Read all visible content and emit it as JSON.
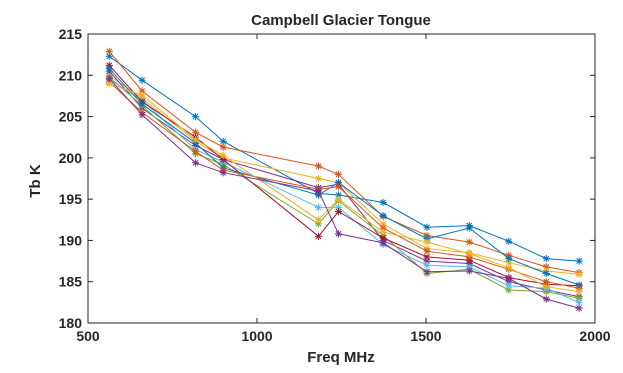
{
  "chart_data": {
    "type": "line",
    "title": "Campbell Glacier Tongue",
    "xlabel": "Freq MHz",
    "ylabel": "Tb K",
    "xlim": [
      500,
      2000
    ],
    "ylim": [
      180,
      215
    ],
    "xticks": [
      500,
      1000,
      1500,
      2000
    ],
    "yticks": [
      180,
      185,
      190,
      195,
      200,
      205,
      210,
      215
    ],
    "grid": false,
    "legend": "none",
    "marker": "asterisk",
    "x": [
      563,
      660,
      818,
      900,
      1182,
      1241,
      1373,
      1503,
      1628,
      1745,
      1856,
      1953
    ],
    "series": [
      {
        "color": "#0072BD",
        "values": [
          212.3,
          209.4,
          205.0,
          202.0,
          195.7,
          195.5,
          194.6,
          191.6,
          191.8,
          189.9,
          187.8,
          187.5
        ]
      },
      {
        "color": "#D95319",
        "values": [
          212.9,
          208.1,
          203.1,
          201.3,
          199.0,
          198.0,
          192.9,
          190.6,
          189.8,
          188.2,
          186.8,
          186.1
        ]
      },
      {
        "color": "#EDB120",
        "values": [
          210.0,
          207.2,
          202.0,
          200.0,
          197.5,
          197.0,
          192.0,
          189.0,
          188.5,
          187.3,
          186.3,
          185.9
        ]
      },
      {
        "color": "#7E2F8E",
        "values": [
          210.5,
          206.0,
          201.5,
          199.8,
          196.4,
          196.8,
          190.0,
          187.5,
          187.2,
          185.0,
          184.0,
          183.2
        ]
      },
      {
        "color": "#77AC30",
        "values": [
          209.8,
          206.3,
          200.5,
          199.2,
          192.0,
          194.8,
          190.6,
          186.0,
          186.5,
          184.0,
          183.8,
          183.0
        ]
      },
      {
        "color": "#4DBEEE",
        "values": [
          209.5,
          207.0,
          201.0,
          199.5,
          194.0,
          194.0,
          189.5,
          187.0,
          186.8,
          184.5,
          184.2,
          182.5
        ]
      },
      {
        "color": "#A2142F",
        "values": [
          211.2,
          206.8,
          202.5,
          199.8,
          190.5,
          193.5,
          190.3,
          188.0,
          187.6,
          185.5,
          184.7,
          184.5
        ]
      },
      {
        "color": "#0072BD",
        "values": [
          210.8,
          206.5,
          201.8,
          198.8,
          195.5,
          197.0,
          193.0,
          190.2,
          191.5,
          187.8,
          186.0,
          184.6
        ]
      },
      {
        "color": "#D95319",
        "values": [
          209.2,
          205.5,
          200.8,
          198.5,
          196.2,
          196.5,
          191.5,
          188.7,
          188.0,
          186.5,
          185.0,
          184.2
        ]
      },
      {
        "color": "#EDB120",
        "values": [
          209.0,
          207.6,
          202.2,
          200.3,
          192.5,
          195.0,
          191.0,
          189.8,
          188.4,
          186.7,
          184.4,
          183.8
        ]
      },
      {
        "color": "#7E2F8E",
        "values": [
          209.6,
          205.2,
          199.4,
          198.2,
          196.0,
          190.8,
          189.7,
          186.2,
          186.3,
          185.4,
          182.9,
          181.8
        ]
      }
    ]
  }
}
